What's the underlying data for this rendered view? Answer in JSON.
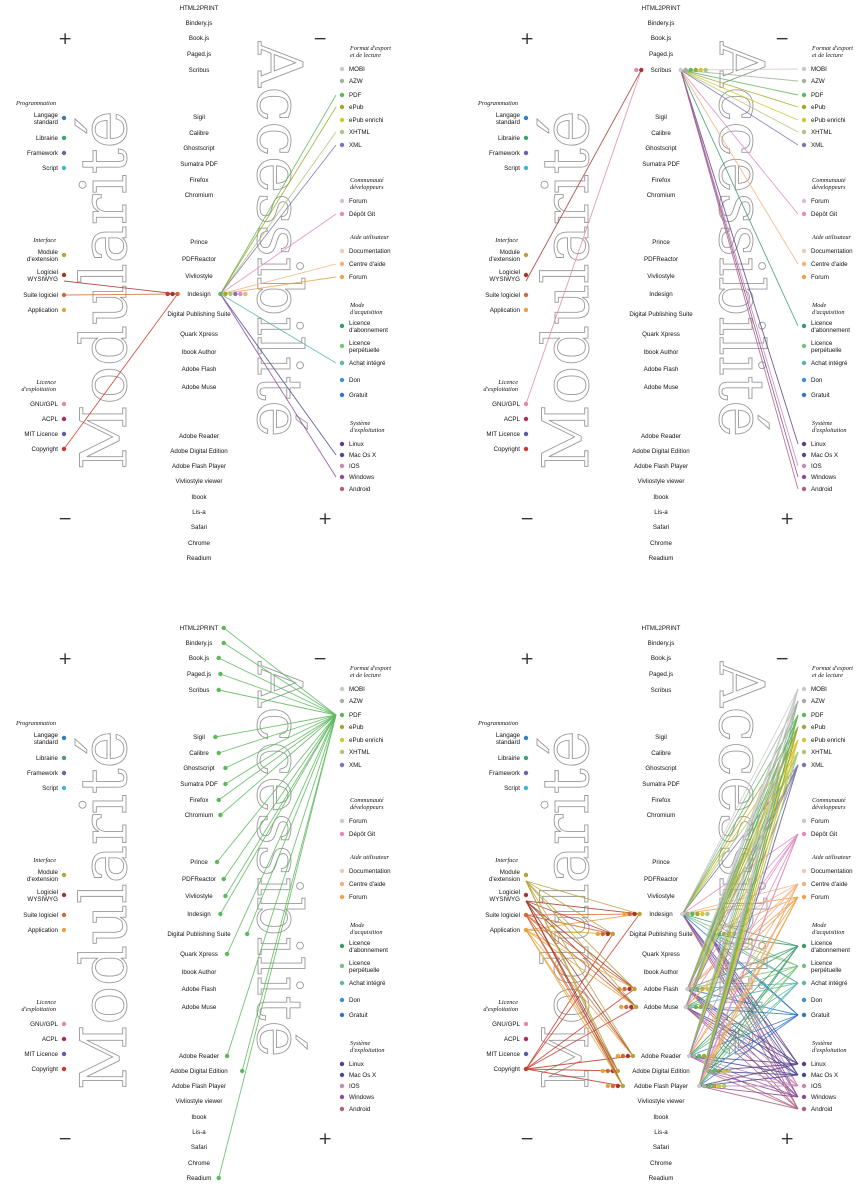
{
  "big_left": "Modularité",
  "big_right": "Accessibilité",
  "marks": {
    "plus": "+",
    "minus": "−"
  },
  "tools": [
    "HTML2PRINT",
    "Bindery.js",
    "Book.js",
    "Paged.js",
    "Scribus",
    "Sigil",
    "Calibre",
    "Ghostscript",
    "Sumatra PDF",
    "Firefox",
    "Chromium",
    "Prince",
    "PDFReactor",
    "Vivliostyle",
    "Indesign",
    "Digital Publishing Suite",
    "Quark Xpress",
    "Ibook Author",
    "Adobe Flash",
    "Adobe Muse",
    "Adobe Reader",
    "Adobe Digital Edition",
    "Adobe Flash Player",
    "Vivliostyle viewer",
    "Ibook",
    "Lis-a",
    "Safari",
    "Chrome",
    "Readium"
  ],
  "left_groups": [
    {
      "title": [
        "Programmation"
      ],
      "items": [
        {
          "label": [
            "Langage",
            "standard"
          ],
          "color": "#2e7fc2"
        },
        {
          "label": [
            "Librairie"
          ],
          "color": "#3aa66a"
        },
        {
          "label": [
            "Framework"
          ],
          "color": "#6a63a8"
        },
        {
          "label": [
            "Script"
          ],
          "color": "#3fb7d4"
        }
      ]
    },
    {
      "title": [
        "Interface"
      ],
      "items": [
        {
          "label": [
            "Module",
            "d'extension"
          ],
          "color": "#b7a23b"
        },
        {
          "label": [
            "Logiciel",
            "WYSIWYG"
          ],
          "color": "#a0392c"
        },
        {
          "label": [
            "Suite logiciel"
          ],
          "color": "#d06a3a"
        },
        {
          "label": [
            "Application"
          ],
          "color": "#e5a53a"
        }
      ]
    },
    {
      "title": [
        "Licence",
        "d'exploitation"
      ],
      "items": [
        {
          "label": [
            "GNU/GPL"
          ],
          "color": "#e18aa6"
        },
        {
          "label": [
            "ACPL"
          ],
          "color": "#b02a52"
        },
        {
          "label": [
            "MIT Licence"
          ],
          "color": "#5a5aa6"
        },
        {
          "label": [
            "Copyright"
          ],
          "color": "#c8382c"
        }
      ]
    }
  ],
  "right_groups": [
    {
      "title": [
        "Format d'export",
        "et de lecture"
      ],
      "items": [
        {
          "label": [
            "MOBI"
          ],
          "color": "#c9c9c9"
        },
        {
          "label": [
            "AZW"
          ],
          "color": "#9fb39a"
        },
        {
          "label": [
            "PDF"
          ],
          "color": "#5cb85c"
        },
        {
          "label": [
            "ePub"
          ],
          "color": "#a5a52e"
        },
        {
          "label": [
            "ePub enrichi"
          ],
          "color": "#d4c62c"
        },
        {
          "label": [
            "XHTML"
          ],
          "color": "#a8c77a"
        },
        {
          "label": [
            "XML"
          ],
          "color": "#7d74b0"
        }
      ]
    },
    {
      "title": [
        "Communauté",
        "développeurs"
      ],
      "items": [
        {
          "label": [
            "Forum"
          ],
          "color": "#d6c0d8"
        },
        {
          "label": [
            "Dépôt Git"
          ],
          "color": "#e08ac0"
        }
      ]
    },
    {
      "title": [
        "Aide utilisateur"
      ],
      "items": [
        {
          "label": [
            "Documentation"
          ],
          "color": "#f3c7b0"
        },
        {
          "label": [
            "Centre d'aide"
          ],
          "color": "#f0b080"
        },
        {
          "label": [
            "Forum"
          ],
          "color": "#f0a24a"
        }
      ]
    },
    {
      "title": [
        "Mode",
        "d'acquisition"
      ],
      "items": [
        {
          "label": [
            "Licence",
            "d'abonnement"
          ],
          "color": "#3a9a6a"
        },
        {
          "label": [
            "Licence",
            "perpétuelle"
          ],
          "color": "#7ac27a"
        },
        {
          "label": [
            "Achat intégré"
          ],
          "color": "#5ab7a8"
        },
        {
          "label": [
            "Don"
          ],
          "color": "#3f8fd6"
        },
        {
          "label": [
            "Gratuit"
          ],
          "color": "#2e78c4"
        }
      ]
    },
    {
      "title": [
        "Système",
        "d'exploitation"
      ],
      "items": [
        {
          "label": [
            "Linux"
          ],
          "color": "#5a3e8c"
        },
        {
          "label": [
            "Mac Os X"
          ],
          "color": "#4a4a9a"
        },
        {
          "label": [
            "IOS"
          ],
          "color": "#c58ab5"
        },
        {
          "label": [
            "Windows"
          ],
          "color": "#8a4b9b"
        },
        {
          "label": [
            "Android"
          ],
          "color": "#b0607a"
        }
      ]
    }
  ],
  "panel_links": [
    {
      "tools": [
        "Indesign"
      ],
      "left": [
        6,
        5,
        11
      ],
      "right": [
        2,
        3,
        5,
        6,
        8,
        10,
        11,
        14,
        18,
        20
      ]
    },
    {
      "tools": [
        "Scribus"
      ],
      "left": [
        5,
        8
      ],
      "right": [
        0,
        1,
        2,
        3,
        4,
        5,
        6,
        8,
        10,
        12,
        17,
        19,
        20,
        21,
        23
      ]
    },
    {
      "tools": [
        "HTML2PRINT",
        "Bindery.js",
        "Book.js",
        "Paged.js",
        "Scribus",
        "Sigil",
        "Calibre",
        "Ghostscript",
        "Sumatra PDF",
        "Firefox",
        "Chromium",
        "Prince",
        "PDFReactor",
        "Vivliostyle",
        "Indesign",
        "Digital Publishing Suite",
        "Quark Xpress",
        "Adobe Reader",
        "Adobe Digital Edition",
        "Readium"
      ],
      "left": [],
      "right": [
        2
      ]
    },
    {
      "tools": [
        "Indesign",
        "Digital Publishing Suite",
        "Adobe Flash",
        "Adobe Muse",
        "Adobe Reader",
        "Adobe Digital Edition",
        "Adobe Flash Player"
      ],
      "left": [
        4,
        5,
        6,
        7,
        11
      ],
      "right": [
        0,
        1,
        2,
        3,
        4,
        5,
        6,
        8,
        10,
        11,
        12,
        13,
        14,
        16,
        17,
        18,
        19,
        20,
        21,
        22
      ]
    }
  ]
}
